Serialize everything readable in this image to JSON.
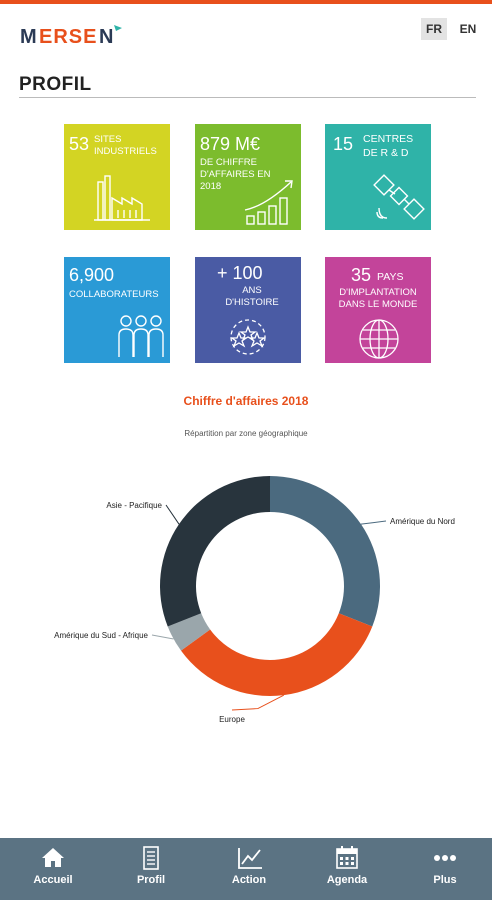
{
  "header": {
    "brand": "MERSEN",
    "lang_fr": "FR",
    "lang_en": "EN",
    "accent_color": "#e8501c"
  },
  "page": {
    "title": "PROFIL"
  },
  "tiles": [
    {
      "big": "53",
      "small": "SITES INDUSTRIELS",
      "color": "#d3d423",
      "icon": "factory-icon"
    },
    {
      "big": "879 M€",
      "small": "DE CHIFFRE D'AFFAIRES EN 2018",
      "color": "#7cbc2d",
      "icon": "growth-chart-icon"
    },
    {
      "big": "15",
      "small": "CENTRES DE R & D",
      "color": "#2fb3a8",
      "icon": "satellite-icon"
    },
    {
      "big": "6,900",
      "small": "COLLABORATEURS",
      "color": "#2a9ad6",
      "icon": "people-icon"
    },
    {
      "big": "+ 100",
      "small": "ANS D'HISTOIRE",
      "color": "#4a5ba4",
      "icon": "stars-circle-icon"
    },
    {
      "big": "35",
      "small_inline": "PAYS",
      "small": "D'IMPLANTATION DANS LE MONDE",
      "color": "#c3449a",
      "icon": "globe-icon"
    }
  ],
  "chart_data": {
    "type": "pie",
    "title": "Chiffre d'affaires 2018",
    "subtitle": "Répartition par zone géographique",
    "categories": [
      "Amérique du Nord",
      "Europe",
      "Amérique du Sud - Afrique",
      "Asie - Pacifique"
    ],
    "values": [
      31,
      34,
      4,
      31
    ],
    "colors": [
      "#4b6a7f",
      "#e8501c",
      "#9aa6ab",
      "#28343d"
    ]
  },
  "nav": [
    {
      "label": "Accueil",
      "icon": "home-icon"
    },
    {
      "label": "Profil",
      "icon": "document-icon"
    },
    {
      "label": "Action",
      "icon": "chart-line-icon"
    },
    {
      "label": "Agenda",
      "icon": "calendar-icon"
    },
    {
      "label": "Plus",
      "icon": "more-dots-icon"
    }
  ]
}
